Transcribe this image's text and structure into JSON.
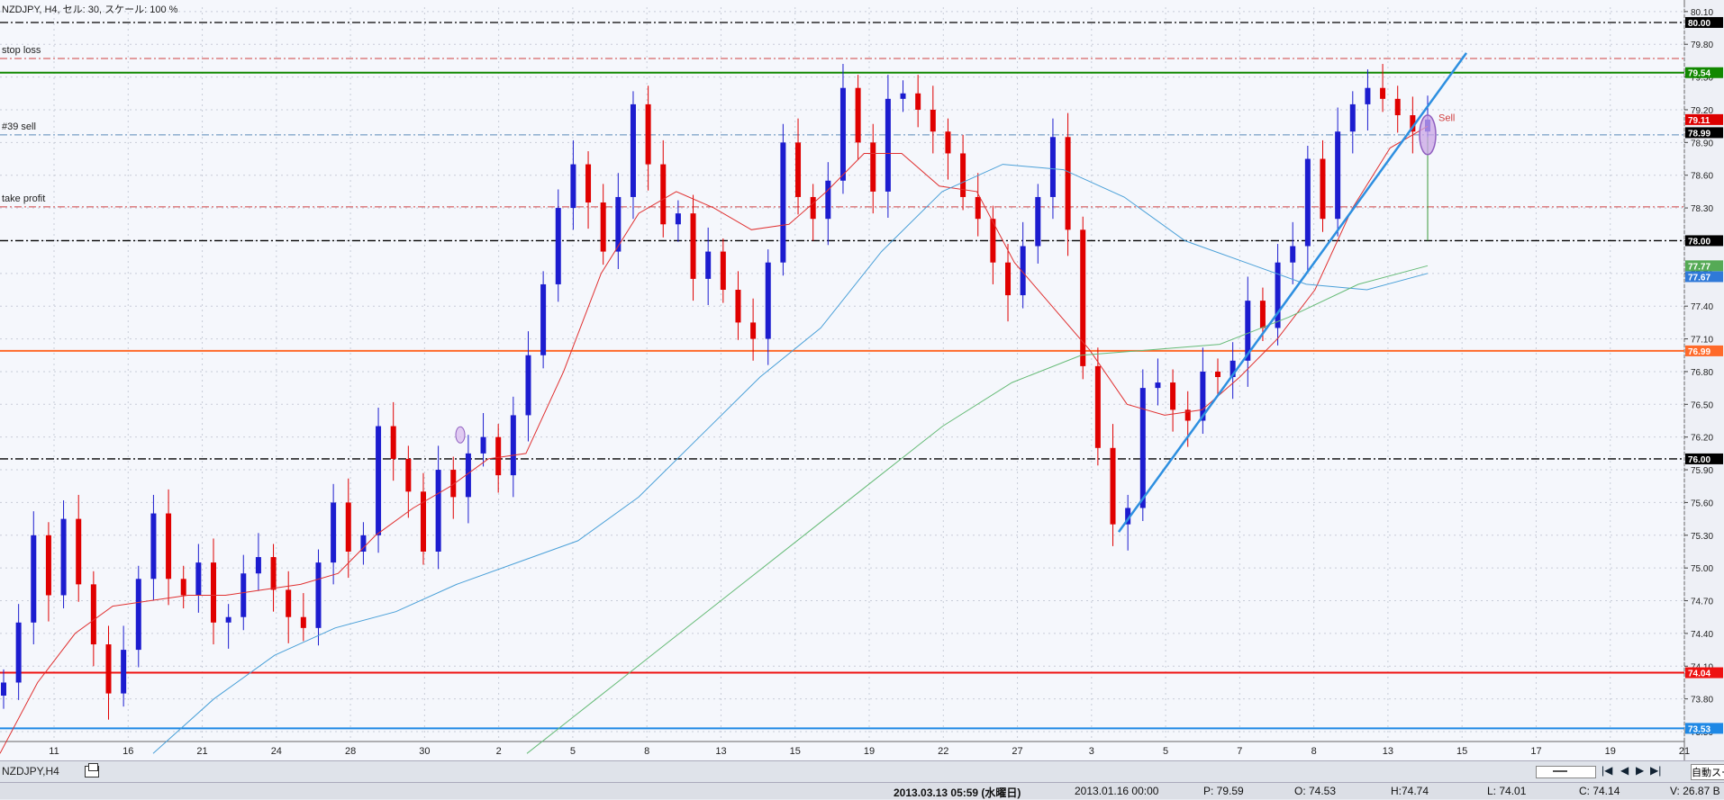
{
  "header": {
    "title": "NZDJPY, H4, セル: 30, スケール: 100 %"
  },
  "chart_data": {
    "type": "candlestick",
    "symbol": "NZDJPY",
    "timeframe": "H4",
    "ylim": [
      73.36,
      80.14
    ],
    "y_ticks": [
      "80.10",
      "79.80",
      "79.50",
      "79.20",
      "78.90",
      "78.60",
      "78.30",
      "78.00",
      "77.70",
      "77.40",
      "77.10",
      "76.80",
      "76.50",
      "76.20",
      "75.90",
      "75.60",
      "75.30",
      "75.00",
      "74.70",
      "74.40",
      "74.10",
      "73.80",
      "73.50"
    ],
    "x_ticks": [
      "11",
      "16",
      "21",
      "24",
      "28",
      "30",
      "2",
      "5",
      "8",
      "13",
      "15",
      "19",
      "22",
      "27",
      "3",
      "5",
      "7",
      "8",
      "13",
      "15",
      "17",
      "19",
      "21"
    ],
    "price_lines": [
      {
        "label": "80.00",
        "price": 80.0,
        "color": "#000000",
        "style": "dashdot"
      },
      {
        "label": "79.54",
        "price": 79.54,
        "color": "#118800",
        "style": "solid"
      },
      {
        "label": "79.11",
        "price": 79.11,
        "color": "#dd0000",
        "style": "marker"
      },
      {
        "label": "78.99",
        "price": 78.99,
        "color": "#000000",
        "style": "marker"
      },
      {
        "label": "78.00",
        "price": 78.0,
        "color": "#000000",
        "style": "dashdot"
      },
      {
        "label": "77.77",
        "price": 77.77,
        "color": "#55aa55",
        "style": "marker"
      },
      {
        "label": "77.67",
        "price": 77.67,
        "color": "#2f79d8",
        "style": "marker"
      },
      {
        "label": "76.99",
        "price": 76.99,
        "color": "#ff6a2a",
        "style": "solid"
      },
      {
        "label": "76.00",
        "price": 76.0,
        "color": "#000000",
        "style": "dashdot"
      },
      {
        "label": "74.04",
        "price": 74.04,
        "color": "#ee1111",
        "style": "solid"
      },
      {
        "label": "73.53",
        "price": 73.53,
        "color": "#1e88e5",
        "style": "solid"
      }
    ],
    "order_lines": [
      {
        "label": "stop loss",
        "price": 79.67,
        "color": "#d04040"
      },
      {
        "label": "#39 sell",
        "price": 78.97,
        "color": "#5a8ab8"
      },
      {
        "label": "take profit",
        "price": 78.31,
        "color": "#d04040"
      }
    ],
    "trendlines": [
      {
        "from": [
          "2013-02-27",
          75.33
        ],
        "to": [
          "2013-03-14",
          79.72
        ]
      }
    ],
    "annotations": [
      {
        "text": "Sell",
        "price": 79.13
      }
    ],
    "candles_close_path": [
      [
        73.95,
        74.5,
        75.3,
        74.75,
        75.45,
        74.85,
        74.3,
        73.85,
        74.25,
        74.9,
        75.5,
        74.9,
        74.75,
        75.05,
        74.5,
        74.55,
        74.95,
        75.1,
        74.8,
        74.55,
        74.45,
        75.05,
        75.6,
        75.15,
        75.3,
        76.3,
        76.0,
        75.7,
        75.15,
        75.9,
        75.65,
        76.05,
        76.2,
        75.85,
        76.4,
        76.95,
        77.6,
        78.3,
        78.7,
        78.35,
        77.9,
        78.4,
        79.25,
        78.7,
        78.15,
        78.25,
        77.65,
        77.9,
        77.55,
        77.25,
        77.1,
        77.8,
        78.9,
        78.4,
        78.2,
        78.55,
        79.4,
        78.9,
        78.45,
        79.3,
        79.35,
        79.2,
        79.0,
        78.8,
        78.4,
        78.2,
        77.8,
        77.5,
        77.95,
        78.4,
        78.95,
        78.1,
        76.85,
        76.1,
        75.4,
        75.55,
        76.65,
        76.7,
        76.45,
        76.35,
        76.8,
        76.75,
        76.9,
        77.45,
        77.2,
        77.8,
        77.95,
        78.75,
        78.2,
        79.0,
        79.25,
        79.4,
        79.3,
        79.15,
        79.0,
        79.11
      ]
    ],
    "moving_averages": [
      {
        "name": "MA red",
        "color": "#e03030",
        "points": [
          73.3,
          73.95,
          74.4,
          74.65,
          74.7,
          74.75,
          74.75,
          74.8,
          74.85,
          74.95,
          75.3,
          75.55,
          75.75,
          76.0,
          76.05,
          76.8,
          77.7,
          78.25,
          78.45,
          78.3,
          78.1,
          78.15,
          78.45,
          78.8,
          78.8,
          78.5,
          78.45,
          77.8,
          77.4,
          77.0,
          76.5,
          76.4,
          76.45,
          76.75,
          77.1,
          77.55,
          78.3,
          78.85,
          79.05
        ]
      },
      {
        "name": "MA blue",
        "color": "#4aa0d8",
        "points": [
          73.3,
          73.8,
          74.2,
          74.45,
          74.6,
          74.85,
          75.05,
          75.25,
          75.65,
          76.2,
          76.75,
          77.2,
          77.9,
          78.45,
          78.7,
          78.65,
          78.4,
          78.0,
          77.8,
          77.6,
          77.55,
          77.7
        ]
      },
      {
        "name": "MA green",
        "color": "#66bb77",
        "points": [
          73.3,
          73.8,
          74.3,
          74.8,
          75.3,
          75.8,
          76.3,
          76.7,
          76.95,
          77.0,
          77.05,
          77.3,
          77.6,
          77.77
        ]
      }
    ]
  },
  "bottom_tabs": {
    "symbol_tab": "NZDJPY,H4"
  },
  "nav": {
    "first": "|◀",
    "prev": "◀",
    "next": "▶",
    "last": "▶|",
    "zoom_label": "自動スーム"
  },
  "status": {
    "datetime": "2013.03.13 05:59 (水曜日)",
    "cursor_time": "2013.01.16 00:00",
    "p": "P: 79.59",
    "o": "O: 74.53",
    "h": "H:74.74",
    "l": "L: 74.01",
    "c": "C: 74.14",
    "v": "V: 26.87 B"
  }
}
